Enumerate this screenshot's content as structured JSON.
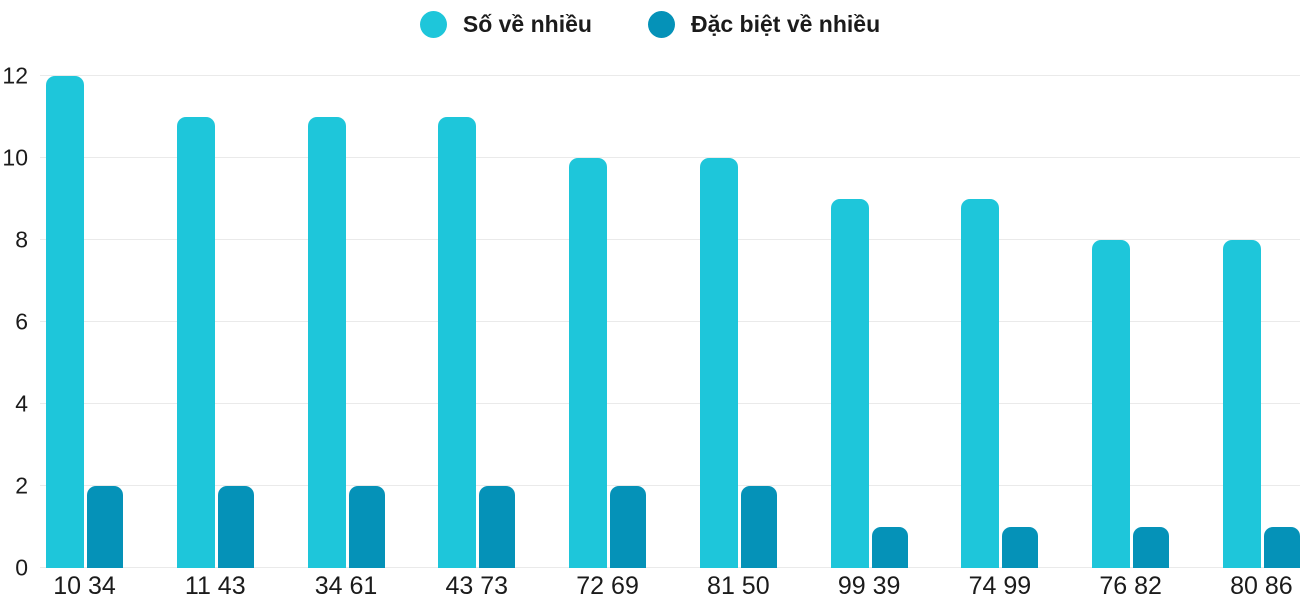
{
  "chart_data": {
    "type": "bar",
    "title": "",
    "categories": [
      "10 34",
      "11 43",
      "34 61",
      "43 73",
      "72 69",
      "81 50",
      "99 39",
      "74 99",
      "76 82",
      "80 86"
    ],
    "series": [
      {
        "name": "Số về nhiều",
        "color": "#1EC6DA",
        "values": [
          12,
          11,
          11,
          11,
          10,
          10,
          9,
          9,
          8,
          8
        ]
      },
      {
        "name": "Đặc biệt về nhiều",
        "color": "#0592B8",
        "values": [
          2,
          2,
          2,
          2,
          2,
          2,
          1,
          1,
          1,
          1
        ]
      }
    ],
    "xlabel": "",
    "ylabel": "",
    "ylim": [
      0,
      12
    ],
    "yticks": [
      0,
      2,
      4,
      6,
      8,
      10,
      12
    ],
    "grid": true,
    "legend_position": "top-center",
    "colors": {
      "grid": "#EAEAEA",
      "text": "#1B1B1B",
      "background": "#FFFFFF"
    }
  }
}
